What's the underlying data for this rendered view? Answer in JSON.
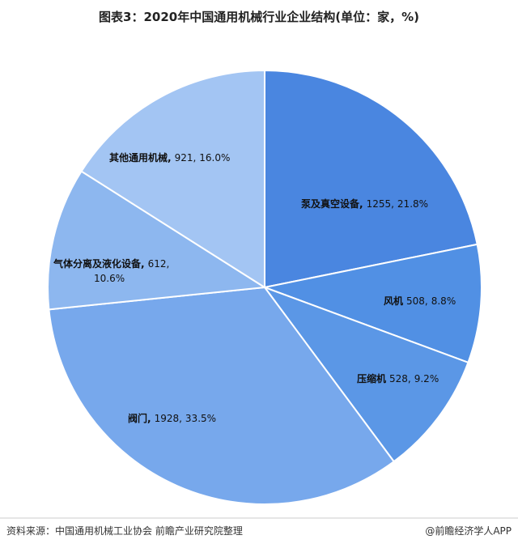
{
  "header": {
    "title": "图表3：2020年中国通用机械行业企业结构(单位：家，%)"
  },
  "chart_data": {
    "type": "pie",
    "categories": [
      "泵及真空设备,",
      "风机",
      "压缩机",
      "阀门,",
      "气体分离及液化设备,",
      "其他通用机械,"
    ],
    "counts": [
      1255,
      508,
      528,
      1928,
      612,
      921
    ],
    "count_labels": [
      "1255,",
      "508,",
      "528,",
      "1928,",
      "612,",
      "921,"
    ],
    "values": [
      21.8,
      8.8,
      9.2,
      33.5,
      10.6,
      16.0
    ],
    "value_labels": [
      "21.8%",
      "8.8%",
      "9.2%",
      "33.5%",
      "10.6%",
      "16.0%"
    ],
    "colors": [
      "#4a86e0",
      "#5190e4",
      "#5b97e6",
      "#77a8ec",
      "#8db7ef",
      "#a3c5f3"
    ]
  },
  "footer": {
    "source": "资料来源：中国通用机械工业协会 前瞻产业研究院整理",
    "brand": "@前瞻经济学人APP"
  }
}
